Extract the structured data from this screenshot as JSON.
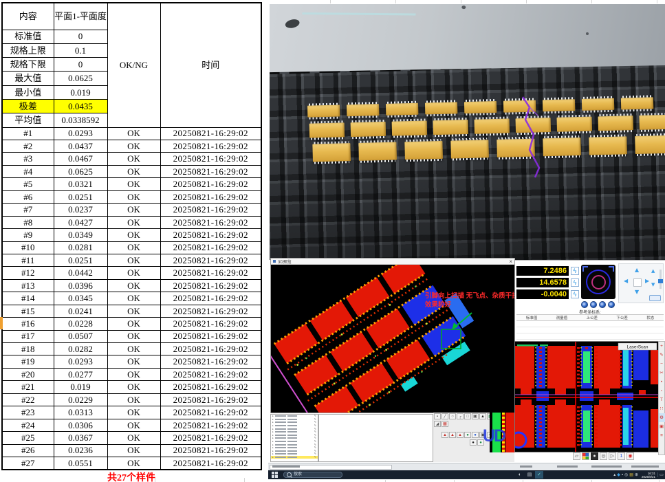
{
  "measurement_table": {
    "columns": {
      "content": "内容",
      "value": "平面1-平面度",
      "status": "OK/NG",
      "time": "时间"
    },
    "stats": [
      {
        "label": "标准值",
        "value": "0"
      },
      {
        "label": "规格上限",
        "value": "0.1"
      },
      {
        "label": "规格下限",
        "value": "0"
      },
      {
        "label": "最大值",
        "value": "0.0625"
      },
      {
        "label": "最小值",
        "value": "0.019"
      },
      {
        "label": "极差",
        "value": "0.0435",
        "highlight": true
      },
      {
        "label": "平均值",
        "value": "0.0338592"
      }
    ],
    "samples": [
      {
        "id": "#1",
        "value": "0.0293",
        "status": "OK",
        "time": "20250821-16:29:02"
      },
      {
        "id": "#2",
        "value": "0.0437",
        "status": "OK",
        "time": "20250821-16:29:02"
      },
      {
        "id": "#3",
        "value": "0.0467",
        "status": "OK",
        "time": "20250821-16:29:02"
      },
      {
        "id": "#4",
        "value": "0.0625",
        "status": "OK",
        "time": "20250821-16:29:02"
      },
      {
        "id": "#5",
        "value": "0.0321",
        "status": "OK",
        "time": "20250821-16:29:02"
      },
      {
        "id": "#6",
        "value": "0.0251",
        "status": "OK",
        "time": "20250821-16:29:02"
      },
      {
        "id": "#7",
        "value": "0.0237",
        "status": "OK",
        "time": "20250821-16:29:02"
      },
      {
        "id": "#8",
        "value": "0.0427",
        "status": "OK",
        "time": "20250821-16:29:02"
      },
      {
        "id": "#9",
        "value": "0.0349",
        "status": "OK",
        "time": "20250821-16:29:02"
      },
      {
        "id": "#10",
        "value": "0.0281",
        "status": "OK",
        "time": "20250821-16:29:02"
      },
      {
        "id": "#11",
        "value": "0.0251",
        "status": "OK",
        "time": "20250821-16:29:02"
      },
      {
        "id": "#12",
        "value": "0.0442",
        "status": "OK",
        "time": "20250821-16:29:02"
      },
      {
        "id": "#13",
        "value": "0.0396",
        "status": "OK",
        "time": "20250821-16:29:02"
      },
      {
        "id": "#14",
        "value": "0.0345",
        "status": "OK",
        "time": "20250821-16:29:02"
      },
      {
        "id": "#15",
        "value": "0.0241",
        "status": "OK",
        "time": "20250821-16:29:02"
      },
      {
        "id": "#16",
        "value": "0.0228",
        "status": "OK",
        "time": "20250821-16:29:02"
      },
      {
        "id": "#17",
        "value": "0.0507",
        "status": "OK",
        "time": "20250821-16:29:02"
      },
      {
        "id": "#18",
        "value": "0.0282",
        "status": "OK",
        "time": "20250821-16:29:02"
      },
      {
        "id": "#19",
        "value": "0.0293",
        "status": "OK",
        "time": "20250821-16:29:02"
      },
      {
        "id": "#20",
        "value": "0.0277",
        "status": "OK",
        "time": "20250821-16:29:02"
      },
      {
        "id": "#21",
        "value": "0.019",
        "status": "OK",
        "time": "20250821-16:29:02"
      },
      {
        "id": "#22",
        "value": "0.0229",
        "status": "OK",
        "time": "20250821-16:29:02"
      },
      {
        "id": "#23",
        "value": "0.0313",
        "status": "OK",
        "time": "20250821-16:29:02"
      },
      {
        "id": "#24",
        "value": "0.0306",
        "status": "OK",
        "time": "20250821-16:29:02"
      },
      {
        "id": "#25",
        "value": "0.0367",
        "status": "OK",
        "time": "20250821-16:29:02"
      },
      {
        "id": "#26",
        "value": "0.0236",
        "status": "OK",
        "time": "20250821-16:29:02"
      },
      {
        "id": "#27",
        "value": "0.0551",
        "status": "OK",
        "time": "20250821-16:29:02"
      }
    ],
    "footer_note": "共27个样件"
  },
  "photo": {
    "chip_rows": [
      {
        "count": 9
      },
      {
        "count": 10
      },
      {
        "count": 9
      }
    ]
  },
  "pointcloud": {
    "window_title": "3D预览",
    "annotation": {
      "line1": "引脚向上扫描 无飞点、杂质干扰",
      "line2": "效果较好"
    }
  },
  "measure_panel": {
    "readouts": [
      {
        "value": "7.2486"
      },
      {
        "value": "14.6578"
      },
      {
        "value": "-0.0040"
      }
    ],
    "ref_label": "参考坐标系:",
    "table_headers": [
      "标准值",
      "测量值",
      "上公差",
      "下公差",
      "状态"
    ]
  },
  "laserscan": {
    "label": "LaserScan",
    "toolbar": [
      {
        "name": "zoom-in",
        "glyph": "+"
      },
      {
        "name": "edit",
        "glyph": "✎"
      },
      {
        "name": "zoom-out",
        "glyph": "−"
      },
      {
        "name": "cut",
        "glyph": "✂"
      },
      {
        "name": "point",
        "glyph": "•"
      },
      {
        "name": "region",
        "glyph": "▫"
      },
      {
        "name": "text-tool",
        "glyph": "T"
      },
      {
        "name": "points-grid",
        "glyph": "∷"
      },
      {
        "name": "settings-gear",
        "glyph": "⚙",
        "active": true
      },
      {
        "name": "camera",
        "glyph": "▣"
      },
      {
        "name": "list",
        "glyph": "≡"
      }
    ]
  },
  "logo_text": "UD",
  "icon_glyphs": {
    "lightning": "ϟ",
    "close": "×",
    "dpad_up": "▲",
    "dpad_down": "▼",
    "dpad_left": "◀",
    "dpad_right": "▶",
    "nudge_up": "▲",
    "nudge_down": "▼",
    "check": "✓"
  },
  "bottom_toolbar": {
    "row_a": [
      {
        "g": "▪"
      },
      {
        "g": "╱"
      },
      {
        "g": "○"
      },
      {
        "g": "┌"
      },
      {
        "g": "□"
      },
      {
        "g": "▣"
      },
      {
        "g": "▲",
        "c": "drk"
      },
      {
        "g": "▦",
        "c": "grn"
      },
      {
        "g": "✳",
        "c": "red"
      },
      {
        "g": "✓",
        "c": "grn"
      }
    ],
    "row_b": [
      {
        "g": "◢"
      },
      {
        "g": "▦",
        "c": "red"
      }
    ],
    "row_c": [
      {
        "g": "▲",
        "c": "red"
      },
      {
        "g": "▲",
        "c": "red"
      },
      {
        "g": "▲",
        "c": "red"
      },
      {
        "g": "●",
        "c": "grn"
      },
      {
        "g": "●",
        "c": "blu"
      },
      {
        "g": "▣"
      },
      {
        "g": "✛"
      },
      {
        "g": "↰"
      }
    ],
    "row_c2": [
      {
        "g": "●",
        "c": "drk"
      },
      {
        "g": "●",
        "c": "grn"
      }
    ]
  },
  "mini_icons": [
    {
      "g": "▱"
    },
    {
      "g": "▚",
      "c": "quad"
    },
    {
      "g": "●",
      "c": "dark"
    },
    {
      "g": "◎"
    },
    {
      "g": "▷"
    },
    {
      "g": "1",
      "c": "bluc"
    },
    {
      "g": "◉",
      "c": "redc"
    }
  ],
  "point_list": {
    "row_count": 14,
    "highlight_last": true
  },
  "taskbar": {
    "search_label": "搜索",
    "tray_icons": [
      {
        "g": "▴"
      },
      {
        "g": "◆",
        "c": "blue"
      },
      {
        "g": "▪"
      },
      {
        "g": "◎"
      },
      {
        "g": "▤",
        "c": "yel"
      },
      {
        "g": "⊕"
      }
    ],
    "clock_time": "16:31",
    "clock_date": "2025/8/21"
  },
  "colors": {
    "highlight_yellow": "#ffff00",
    "note_red": "#ff0000",
    "readout_yellow": "#ffe400",
    "chip_gold": "#e7b94f",
    "scan_red": "#e31806",
    "scan_blue": "#1b2de0",
    "annotation_red": "#ff2a2a",
    "laser_green": "#2ee87a"
  }
}
